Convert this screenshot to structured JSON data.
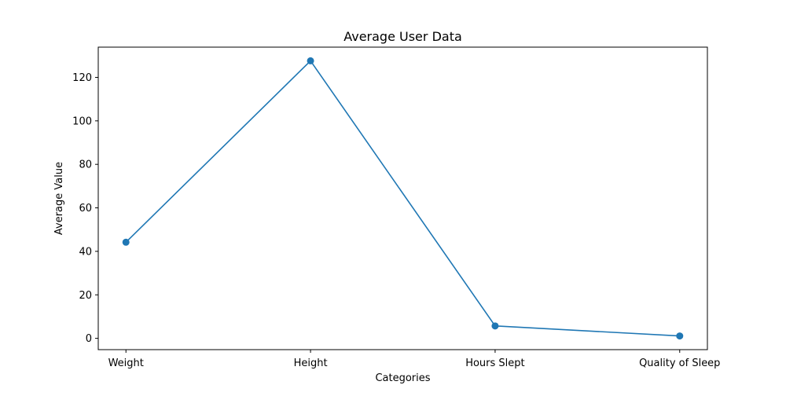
{
  "chart_data": {
    "type": "line",
    "title": "Average User Data",
    "xlabel": "Categories",
    "ylabel": "Average Value",
    "categories": [
      "Weight",
      "Height",
      "Hours Slept",
      "Quality of Sleep"
    ],
    "values": [
      44.2,
      127.6,
      5.7,
      1.1
    ],
    "ylim": [
      -5.2,
      133.9
    ],
    "yticks": [
      0,
      20,
      40,
      60,
      80,
      100,
      120
    ],
    "ytick_labels": [
      "0",
      "20",
      "40",
      "60",
      "80",
      "100",
      "120"
    ],
    "grid": false,
    "legend": "none",
    "marker": "circle",
    "colors": {
      "line": "#1f77b4",
      "axes": "#000000",
      "background": "#ffffff"
    }
  }
}
